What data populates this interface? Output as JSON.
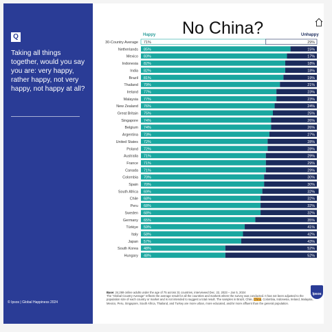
{
  "sidebar": {
    "badge": "Q",
    "question": "Taking all things together, would you say you are: very happy, rather happy, not very happy, not happy at all?",
    "footer": "© Ipsos | Global Happiness 2024"
  },
  "annotation": "No China?",
  "logo": "Ipsos",
  "colors": {
    "happy": "#1aa7a0",
    "unhappy": "#1b2b5c",
    "sidebar": "#2a3c96",
    "highlight": "#f6b23a"
  },
  "base_note": {
    "label": "Base:",
    "text1": " 24,269 online adults under the age of 75 across 31 countries, interviewed Dec. 22, 2023 – Jan 5, 2024",
    "text2": "The \"Global Country Average\" reflects the average result for all the countries and markets where the survey was conducted. It has not been adjusted to the population size of each country or market and is not intended to suggest a total result.  The samples in Brazil, Chile, ",
    "china": "China",
    "text3": ", Colombia, Indonesia, Ireland, Malaysia, Mexico, Peru, Singapore, South Africa, Thailand, and Turkey are more urban, more educated, and/or more affluent than the general population."
  },
  "chart_data": {
    "type": "bar",
    "orientation": "horizontal-stacked",
    "series": [
      {
        "name": "Happy",
        "values": [
          71,
          85,
          83,
          82,
          82,
          81,
          79,
          77,
          77,
          76,
          75,
          74,
          74,
          73,
          72,
          72,
          71,
          71,
          71,
          70,
          70,
          69,
          68,
          68,
          68,
          65,
          59,
          58,
          57,
          48,
          48
        ]
      },
      {
        "name": "Unhappy",
        "values": [
          29,
          15,
          17,
          18,
          18,
          19,
          21,
          23,
          23,
          24,
          25,
          26,
          26,
          27,
          28,
          28,
          29,
          29,
          29,
          30,
          30,
          32,
          32,
          32,
          32,
          35,
          41,
          42,
          43,
          52,
          52
        ]
      }
    ],
    "categories": [
      "30-Country Average",
      "Netherlands",
      "Mexico",
      "Indonesia",
      "India",
      "Brazil",
      "Thailand",
      "Ireland",
      "Malaysia",
      "New Zealand",
      "Great Britain",
      "Singapore",
      "Belgium",
      "Argentina",
      "United States",
      "Poland",
      "Australia",
      "France",
      "Canada",
      "Colombia",
      "Spain",
      "South Africa",
      "Chile",
      "Peru",
      "Sweden",
      "Germany",
      "Türkiye",
      "Italy",
      "Japan",
      "South Korea",
      "Hungary"
    ],
    "xlim": [
      0,
      100
    ],
    "legend": "top"
  }
}
